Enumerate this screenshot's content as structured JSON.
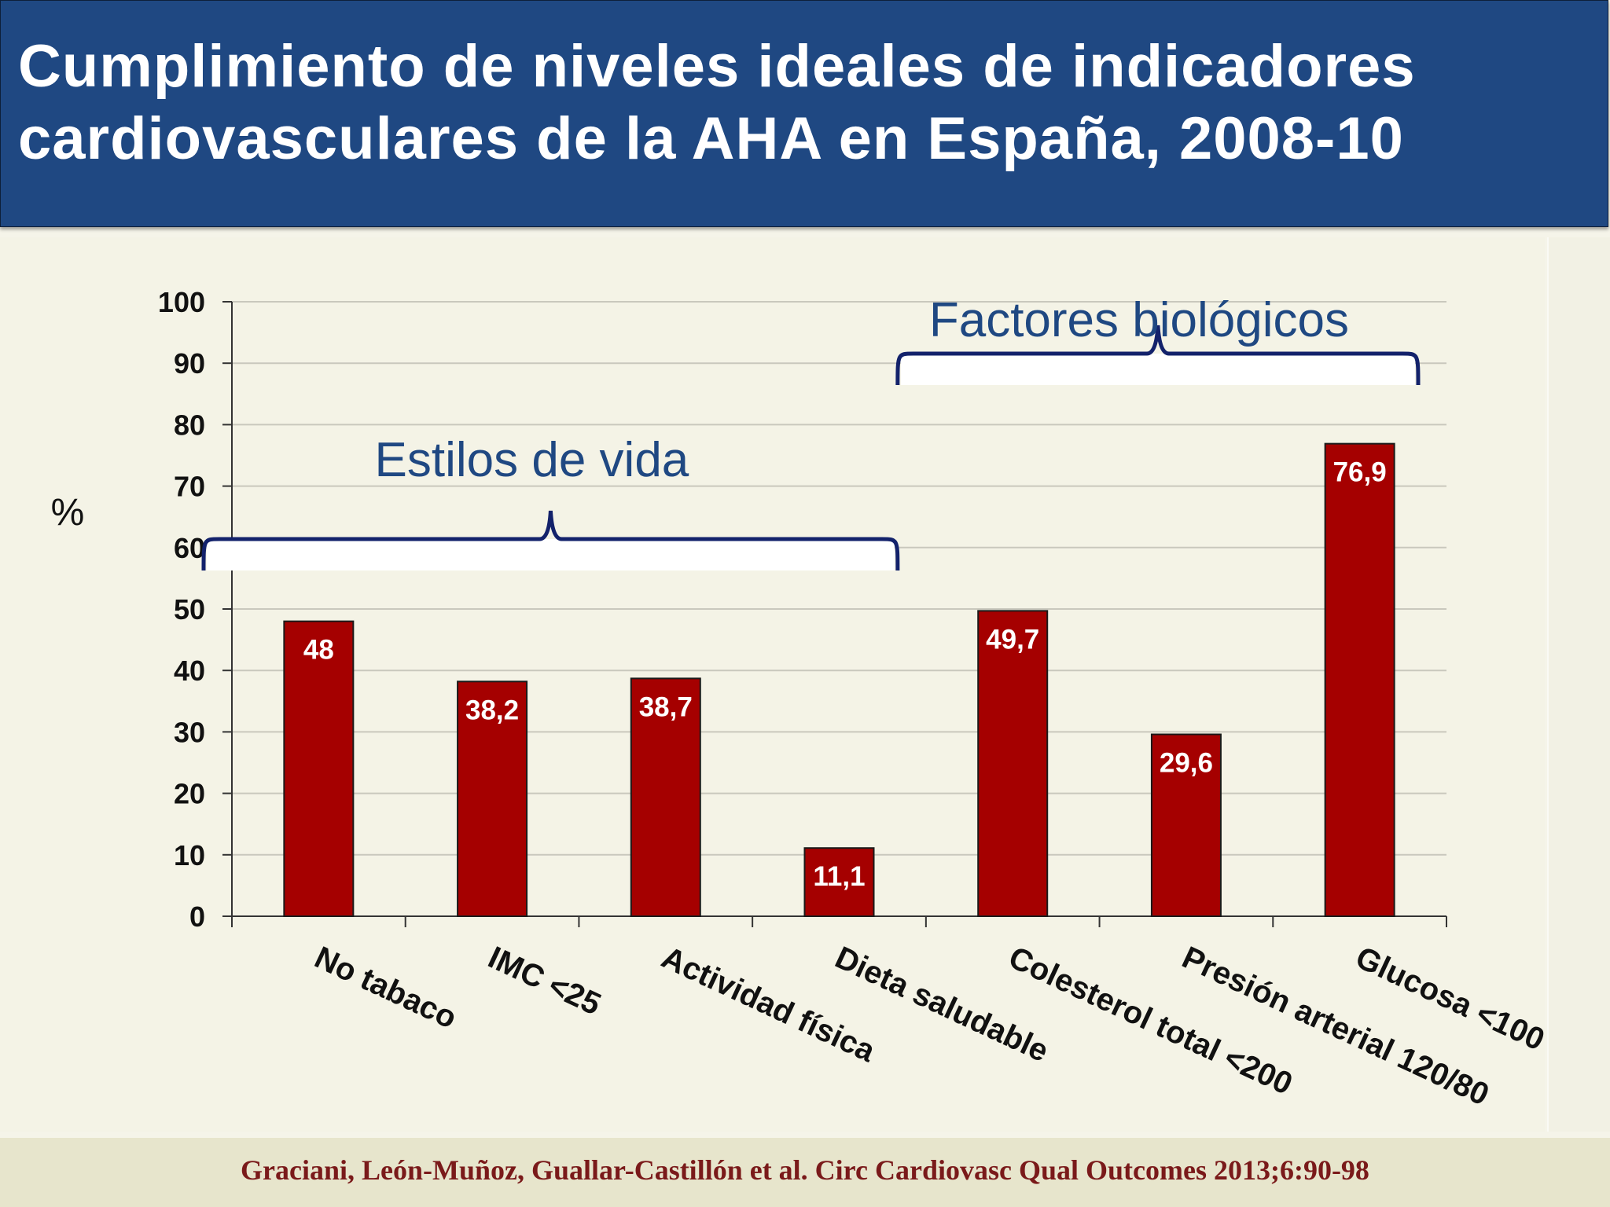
{
  "header": {
    "title_lines": [
      "Cumplimiento de niveles ideales de indicadores",
      "cardiovasculares de la AHA en España, 2008-10"
    ]
  },
  "chart_data": {
    "type": "bar",
    "categories": [
      "No tabaco",
      "IMC <25",
      "Actividad física",
      "Dieta saludable",
      "Colesterol total <200",
      "Presión arterial 120/80",
      "Glucosa <100"
    ],
    "values": [
      48,
      38.2,
      38.7,
      11.1,
      49.7,
      29.6,
      76.9
    ],
    "value_labels": [
      "48",
      "38,2",
      "38,7",
      "11,1",
      "49,7",
      "29,6",
      "76,9"
    ],
    "ylabel": "%",
    "ylim": [
      0,
      100
    ],
    "yticks": [
      0,
      10,
      20,
      30,
      40,
      50,
      60,
      70,
      80,
      90,
      100
    ],
    "grid": true,
    "bar_color": "#a50000",
    "groups": [
      {
        "label": "Estilos de vida",
        "from": 0,
        "to": 3
      },
      {
        "label": "Factores biológicos",
        "from": 4,
        "to": 6
      }
    ]
  },
  "footer": {
    "citation": "Graciani, León-Muñoz, Guallar-Castillón et al. Circ Cardiovasc Qual Outcomes 2013;6:90-98"
  }
}
